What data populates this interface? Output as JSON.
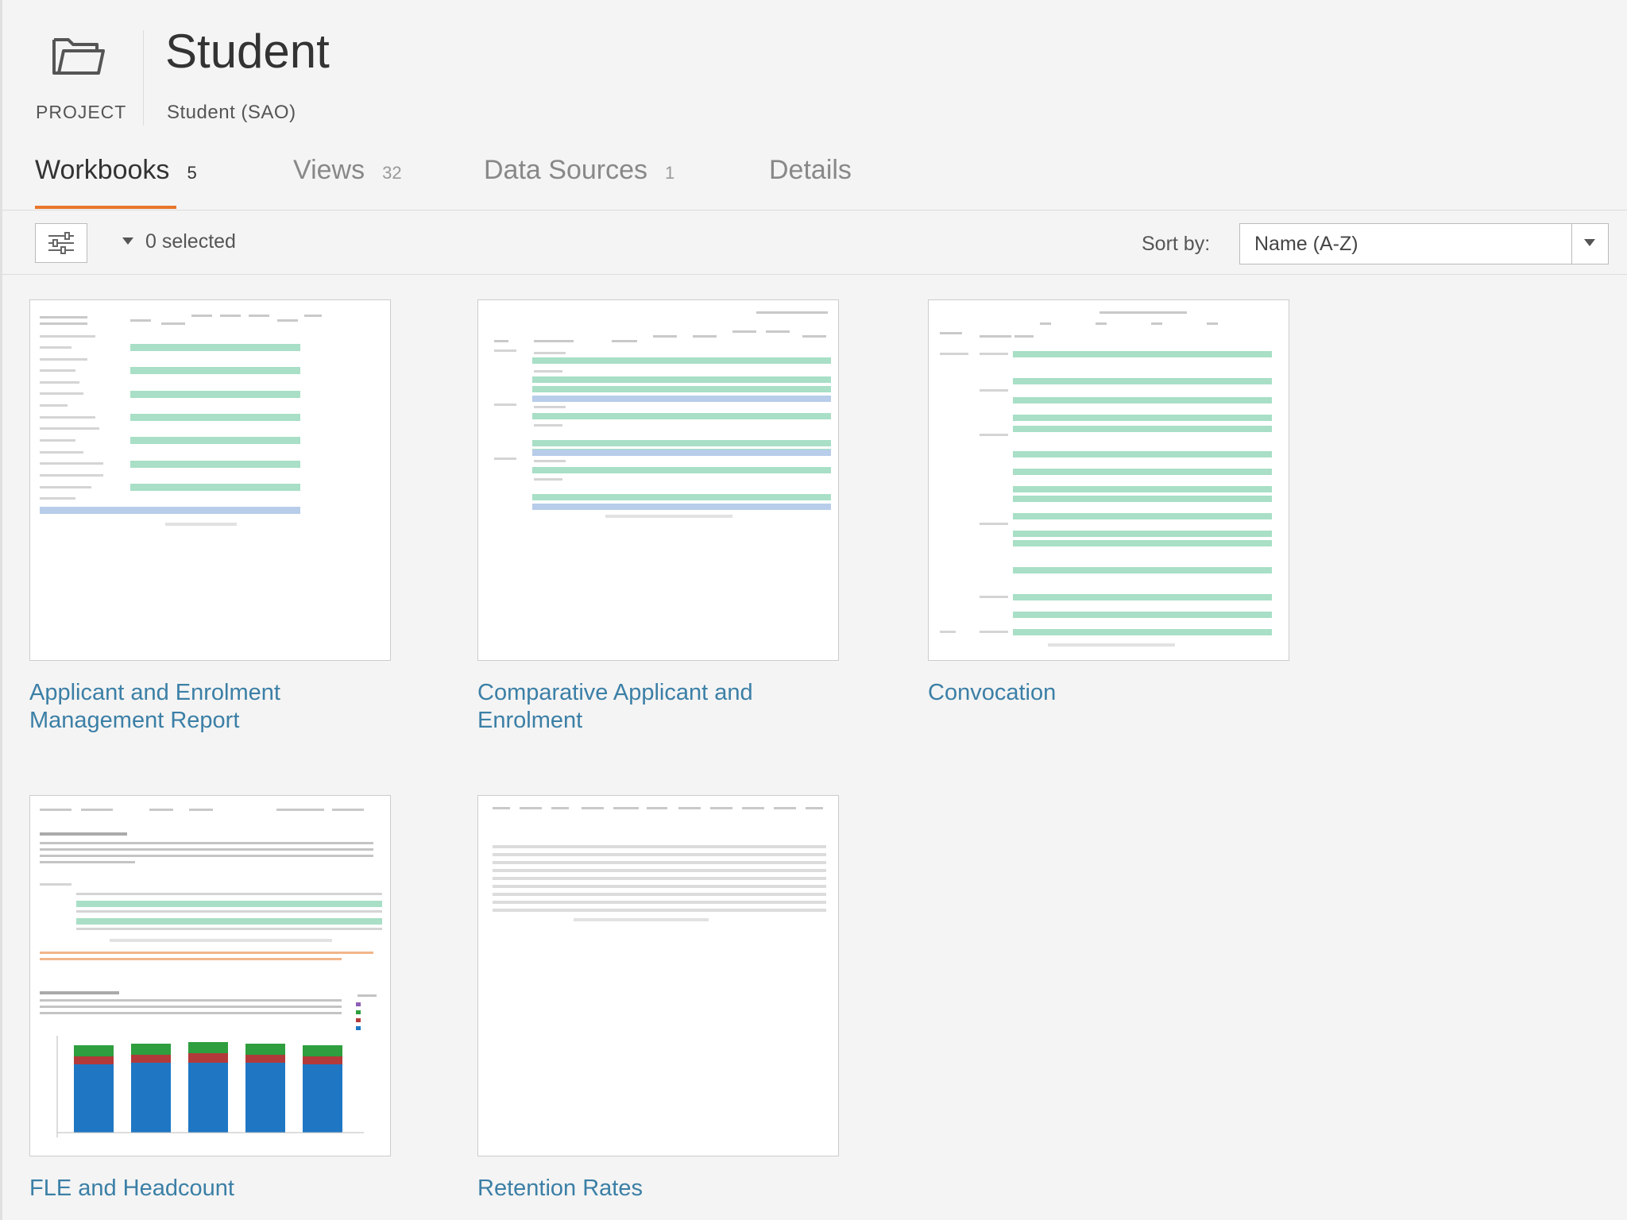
{
  "header": {
    "project_label": "PROJECT",
    "title": "Student",
    "subtitle": "Student (SAO)"
  },
  "tabs": [
    {
      "label": "Workbooks",
      "count": "5",
      "active": true
    },
    {
      "label": "Views",
      "count": "32",
      "active": false
    },
    {
      "label": "Data Sources",
      "count": "1",
      "active": false
    },
    {
      "label": "Details",
      "count": "",
      "active": false
    }
  ],
  "toolbar": {
    "selected_text": "0 selected",
    "sort_label": "Sort by:",
    "sort_value": "Name (A-Z)"
  },
  "workbooks": [
    {
      "title": "Applicant and Enrolment Management Report"
    },
    {
      "title": "Comparative Applicant and Enrolment"
    },
    {
      "title": "Convocation"
    },
    {
      "title": "FLE and Headcount"
    },
    {
      "title": "Retention Rates"
    }
  ],
  "colors": {
    "accent": "#e8762c",
    "link": "#3b7fa6",
    "row_highlight": "#a8dfc6",
    "total_highlight": "#b7cdea",
    "bar_blue": "#1f77c4",
    "bar_red": "#b23a3a",
    "bar_green": "#2e9e3e"
  }
}
